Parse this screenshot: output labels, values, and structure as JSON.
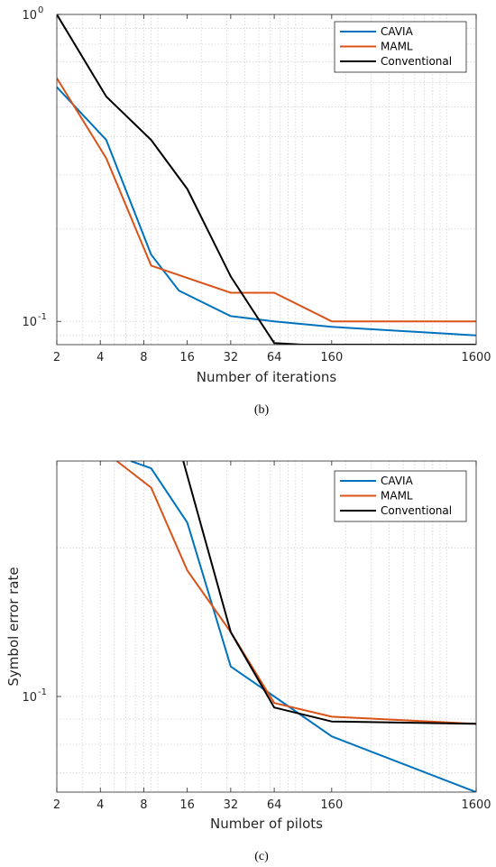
{
  "chart_data": [
    {
      "type": "line",
      "caption": "(b)",
      "xlabel": "Number of iterations",
      "ylabel": "",
      "x_scale": "log",
      "y_scale": "log",
      "xlim": [
        2,
        1600
      ],
      "ylim": [
        0.084,
        1.0
      ],
      "x_ticks": [
        2,
        4,
        8,
        16,
        32,
        64,
        160,
        1600
      ],
      "y_tick_labels": [
        {
          "value": 1.0,
          "base": "10",
          "exp": "0"
        },
        {
          "value": 0.1,
          "base": "10",
          "exp": "-1"
        }
      ],
      "grid": true,
      "legend_position": "top-right",
      "series": [
        {
          "name": "CAVIA",
          "color": "#0072BD",
          "x": [
            2,
            4.4,
            9,
            14,
            32,
            64,
            160,
            1600
          ],
          "y": [
            0.58,
            0.39,
            0.165,
            0.126,
            0.104,
            0.1,
            0.096,
            0.09
          ]
        },
        {
          "name": "MAML",
          "color": "#D95319",
          "x": [
            2,
            4.4,
            9,
            32,
            64,
            160,
            1600
          ],
          "y": [
            0.62,
            0.34,
            0.152,
            0.124,
            0.124,
            0.1,
            0.1
          ]
        },
        {
          "name": "Conventional",
          "color": "#000000",
          "x": [
            2,
            4.4,
            9,
            16,
            32,
            64,
            100,
            1600
          ],
          "y": [
            1.0,
            0.54,
            0.39,
            0.27,
            0.14,
            0.085,
            0.084,
            0.084
          ]
        }
      ]
    },
    {
      "type": "line",
      "caption": "(c)",
      "xlabel": "Number of pilots",
      "ylabel": "Symbol error rate",
      "x_scale": "log",
      "y_scale": "log",
      "xlim": [
        2,
        1600
      ],
      "ylim": [
        0.064,
        0.3
      ],
      "x_ticks": [
        2,
        4,
        8,
        16,
        32,
        64,
        160,
        1600
      ],
      "y_tick_labels": [
        {
          "value": 0.1,
          "base": "10",
          "exp": "-1"
        }
      ],
      "grid": true,
      "legend_position": "top-right",
      "series": [
        {
          "name": "CAVIA",
          "color": "#0072BD",
          "x": [
            6.5,
            9,
            16,
            32,
            64,
            160,
            1600
          ],
          "y": [
            0.3,
            0.29,
            0.225,
            0.115,
            0.1,
            0.083,
            0.064
          ]
        },
        {
          "name": "MAML",
          "color": "#D95319",
          "x": [
            5.2,
            9,
            16,
            32,
            64,
            160,
            1600
          ],
          "y": [
            0.3,
            0.265,
            0.18,
            0.135,
            0.097,
            0.091,
            0.088
          ]
        },
        {
          "name": "Conventional",
          "color": "#000000",
          "x": [
            15,
            32,
            64,
            160,
            1600
          ],
          "y": [
            0.3,
            0.135,
            0.095,
            0.089,
            0.088
          ]
        }
      ]
    }
  ]
}
